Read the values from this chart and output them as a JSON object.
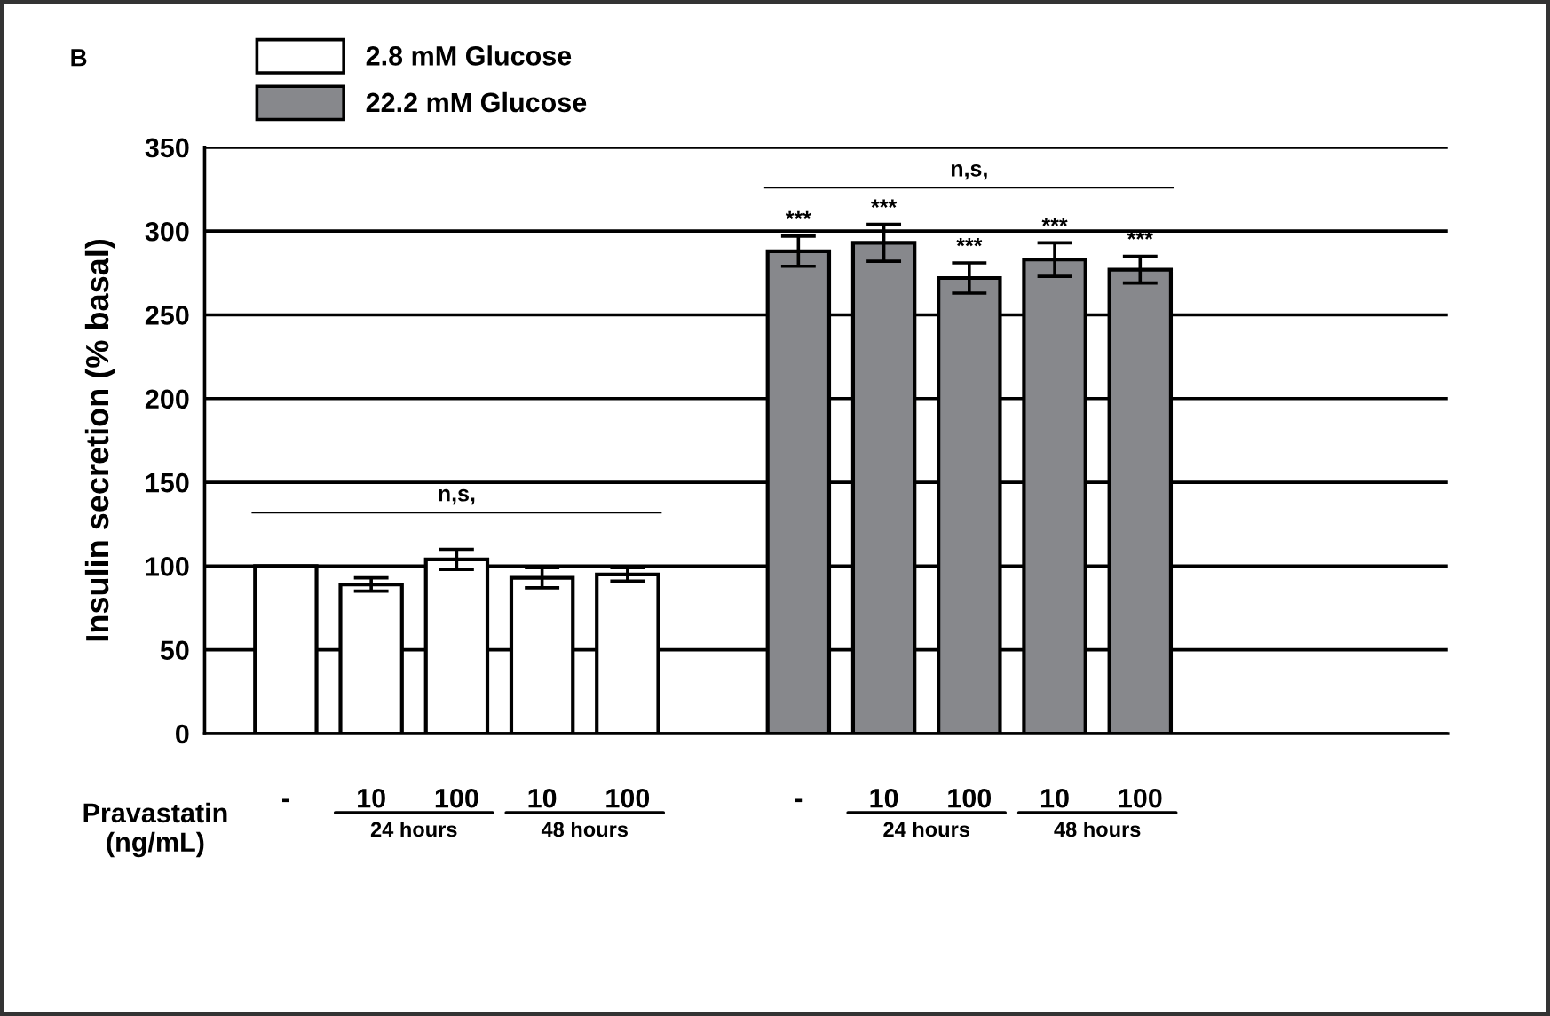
{
  "chart_data": {
    "type": "bar",
    "categories": [
      "-",
      "10",
      "100",
      "10",
      "100",
      null,
      "-",
      "10",
      "100",
      "10",
      "100"
    ],
    "series": [
      {
        "name": "2.8 mM Glucose",
        "color": "#ffffff",
        "values": [
          100,
          89,
          104,
          93,
          95,
          null,
          null,
          null,
          null,
          null,
          null
        ],
        "errors": [
          null,
          4,
          6,
          6,
          4,
          null,
          null,
          null,
          null,
          null,
          null
        ]
      },
      {
        "name": "22.2 mM Glucose",
        "color": "#87888c",
        "values": [
          null,
          null,
          null,
          null,
          null,
          null,
          288,
          293,
          272,
          283,
          277
        ],
        "errors": [
          null,
          null,
          null,
          null,
          null,
          null,
          9,
          11,
          9,
          10,
          8
        ],
        "value_labels": [
          null,
          null,
          null,
          null,
          null,
          null,
          "***",
          "***",
          "***",
          "***",
          "***"
        ]
      }
    ],
    "ylabel": "Insulin secretion (% basal)",
    "ylim": [
      0,
      350
    ],
    "yticks": [
      0,
      50,
      100,
      150,
      200,
      250,
      300,
      350
    ],
    "grid": "y",
    "legend": "top left",
    "annotations": [
      "B",
      "Pravastatin\n(ng/mL)",
      "n,s,",
      "n,s,",
      "24 hours",
      "48 hours",
      "24 hours",
      "48 hours"
    ]
  }
}
